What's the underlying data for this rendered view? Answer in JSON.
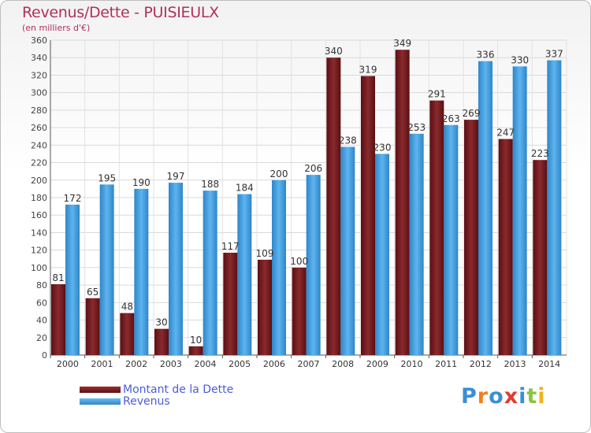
{
  "title": "Revenus/Dette - PUISIEULX",
  "subtitle": "(en milliers d'€)",
  "colors": {
    "dette": "#7a1e22",
    "revenus": "#3f9fe0",
    "title": "#b0305a",
    "legend_text": "#4b5bdc"
  },
  "legend": {
    "items": [
      {
        "label": "Montant de la Dette",
        "color": "#7a1e22"
      },
      {
        "label": "Revenus",
        "color": "#3f9fe0"
      }
    ]
  },
  "logo": {
    "letters": [
      {
        "ch": "P",
        "color": "#3a8fd6"
      },
      {
        "ch": "r",
        "color": "#f07f1e"
      },
      {
        "ch": "o",
        "color": "#3a8fd6"
      },
      {
        "ch": "x",
        "color": "#e33b2f"
      },
      {
        "ch": "i",
        "color": "#3a8fd6"
      },
      {
        "ch": "t",
        "color": "#8bc43f"
      },
      {
        "ch": "i",
        "color": "#f5b11a"
      }
    ]
  },
  "chart_data": {
    "type": "bar",
    "title": "Revenus/Dette - PUISIEULX",
    "subtitle": "(en milliers d'€)",
    "categories": [
      "2000",
      "2001",
      "2002",
      "2003",
      "2004",
      "2005",
      "2006",
      "2007",
      "2008",
      "2009",
      "2010",
      "2011",
      "2012",
      "2013",
      "2014"
    ],
    "series": [
      {
        "name": "Montant de la Dette",
        "values": [
          81,
          65,
          48,
          30,
          10,
          117,
          109,
          100,
          340,
          319,
          349,
          291,
          269,
          247,
          223
        ]
      },
      {
        "name": "Revenus",
        "values": [
          172,
          195,
          190,
          197,
          188,
          184,
          200,
          206,
          238,
          230,
          253,
          263,
          336,
          330,
          337
        ]
      }
    ],
    "ylim": [
      0,
      360
    ],
    "yticks": [
      0,
      20,
      40,
      60,
      80,
      100,
      120,
      140,
      160,
      180,
      200,
      220,
      240,
      260,
      280,
      300,
      320,
      340,
      360
    ],
    "grid": true,
    "legend_position": "bottom-left"
  }
}
